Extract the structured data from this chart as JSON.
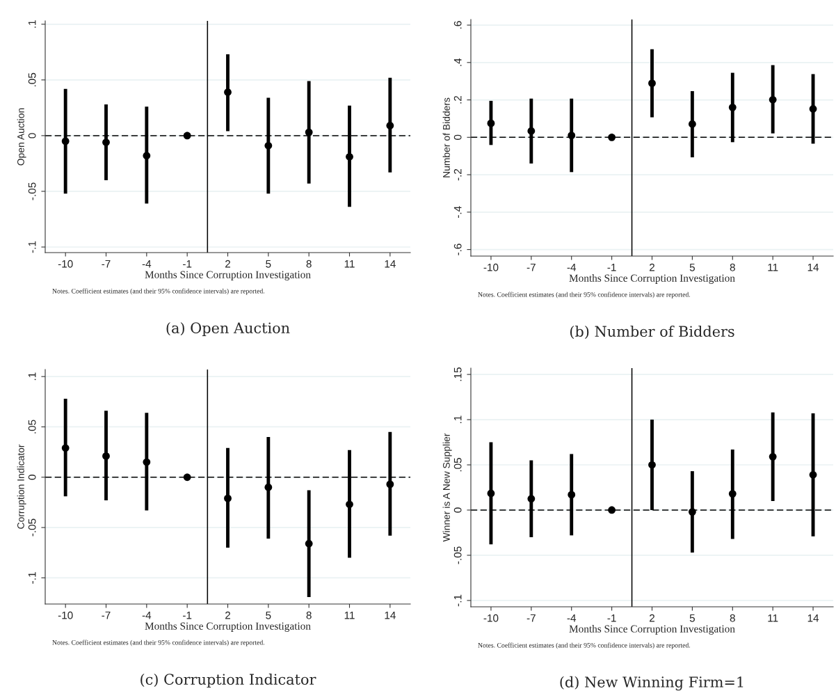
{
  "chart_data": [
    {
      "type": "scatter",
      "title": "(a) Open Auction",
      "xlabel": "Months Since Corruption Investigation",
      "ylabel": "Open Auction",
      "x": [
        -10,
        -7,
        -4,
        -1,
        2,
        5,
        8,
        11,
        14
      ],
      "values": [
        -0.005,
        -0.006,
        -0.018,
        0,
        0.039,
        -0.009,
        0.003,
        -0.019,
        0.009
      ],
      "errors": [
        [
          -0.052,
          0.042
        ],
        [
          -0.04,
          0.028
        ],
        [
          -0.061,
          0.026
        ],
        null,
        [
          0.004,
          0.073
        ],
        [
          -0.052,
          0.034
        ],
        [
          -0.043,
          0.049
        ],
        [
          -0.064,
          0.027
        ],
        [
          -0.033,
          0.052
        ]
      ],
      "color": "#000000",
      "marker": "circle",
      "xlim": [
        -11.5,
        15.5
      ],
      "xticks": [
        -10,
        -7,
        -4,
        -1,
        2,
        5,
        8,
        11,
        14
      ],
      "ylim": [
        -0.105,
        0.103
      ],
      "yticks": [
        {
          "value": -0.1,
          "label": "-.1"
        },
        {
          "value": -0.05,
          "label": "-.05"
        },
        0,
        {
          "value": 0.05,
          "label": ".05"
        },
        {
          "value": 0.1,
          "label": ".1"
        }
      ],
      "grid": "y",
      "ref_lines": [
        {
          "axis": "y",
          "value": 0,
          "line_style": "dashed"
        },
        {
          "axis": "x",
          "value": 0.5,
          "line_style": "solid"
        }
      ],
      "annotations": [
        "Notes. Coefficient estimates (and their 95% confidence intervals) are reported."
      ]
    },
    {
      "type": "scatter",
      "title": "(b) Number of Bidders",
      "xlabel": "Months Since Corruption Investigation",
      "ylabel": "Number of Bidders",
      "x": [
        -10,
        -7,
        -4,
        -1,
        2,
        5,
        8,
        11,
        14
      ],
      "values": [
        0.075,
        0.034,
        0.01,
        0,
        0.289,
        0.071,
        0.16,
        0.201,
        0.152
      ],
      "errors": [
        [
          -0.041,
          0.195
        ],
        [
          -0.14,
          0.207
        ],
        [
          -0.186,
          0.207
        ],
        null,
        [
          0.107,
          0.471
        ],
        [
          -0.107,
          0.247
        ],
        [
          -0.026,
          0.345
        ],
        [
          0.021,
          0.386
        ],
        [
          -0.034,
          0.338
        ]
      ],
      "color": "#000000",
      "marker": "circle",
      "xlim": [
        -11.5,
        15.5
      ],
      "xticks": [
        -10,
        -7,
        -4,
        -1,
        2,
        5,
        8,
        11,
        14
      ],
      "ylim": [
        -0.635,
        0.63
      ],
      "yticks": [
        {
          "value": -0.6,
          "label": "-.6"
        },
        {
          "value": -0.4,
          "label": "-.4"
        },
        {
          "value": -0.2,
          "label": "-.2"
        },
        0,
        {
          "value": 0.2,
          "label": ".2"
        },
        {
          "value": 0.4,
          "label": ".4"
        },
        {
          "value": 0.6,
          "label": ".6"
        }
      ],
      "grid": "y",
      "ref_lines": [
        {
          "axis": "y",
          "value": 0,
          "line_style": "dashed"
        },
        {
          "axis": "x",
          "value": 0.5,
          "line_style": "solid"
        }
      ],
      "annotations": [
        "Notes. Coefficient estimates (and their 95% confidence intervals) are reported."
      ]
    },
    {
      "type": "scatter",
      "title": "(c) Corruption Indicator",
      "xlabel": "Months Since Corruption Investigation",
      "ylabel": "Corruption Indicator",
      "x": [
        -10,
        -7,
        -4,
        -1,
        2,
        5,
        8,
        11,
        14
      ],
      "values": [
        0.029,
        0.021,
        0.015,
        0,
        -0.021,
        -0.01,
        -0.066,
        -0.027,
        -0.007
      ],
      "errors": [
        [
          -0.019,
          0.078
        ],
        [
          -0.023,
          0.066
        ],
        [
          -0.033,
          0.064
        ],
        null,
        [
          -0.07,
          0.029
        ],
        [
          -0.061,
          0.04
        ],
        [
          -0.119,
          -0.013
        ],
        [
          -0.08,
          0.027
        ],
        [
          -0.058,
          0.045
        ]
      ],
      "color": "#000000",
      "marker": "circle",
      "xlim": [
        -11.5,
        15.5
      ],
      "xticks": [
        -10,
        -7,
        -4,
        -1,
        2,
        5,
        8,
        11,
        14
      ],
      "ylim": [
        -0.126,
        0.107
      ],
      "yticks": [
        {
          "value": -0.1,
          "label": "-.1"
        },
        {
          "value": -0.05,
          "label": "-.05"
        },
        0,
        {
          "value": 0.05,
          "label": ".05"
        },
        {
          "value": 0.1,
          "label": ".1"
        }
      ],
      "grid": "y",
      "ref_lines": [
        {
          "axis": "y",
          "value": 0,
          "line_style": "dashed"
        },
        {
          "axis": "x",
          "value": 0.5,
          "line_style": "solid"
        }
      ],
      "annotations": [
        "Notes. Coefficient estimates (and their 95% confidence intervals) are reported."
      ]
    },
    {
      "type": "scatter",
      "title": "(d) New Winning Firm=1",
      "xlabel": "Months Since Corruption Investigation",
      "ylabel": "Winner is A New Supplier",
      "x": [
        -10,
        -7,
        -4,
        -1,
        2,
        5,
        8,
        11,
        14
      ],
      "values": [
        0.0185,
        0.0125,
        0.017,
        0,
        0.05,
        -0.002,
        0.018,
        0.059,
        0.039
      ],
      "errors": [
        [
          -0.038,
          0.075
        ],
        [
          -0.03,
          0.055
        ],
        [
          -0.028,
          0.062
        ],
        null,
        [
          0.0,
          0.1
        ],
        [
          -0.047,
          0.043
        ],
        [
          -0.032,
          0.067
        ],
        [
          0.01,
          0.108
        ],
        [
          -0.029,
          0.107
        ]
      ],
      "color": "#000000",
      "marker": "circle",
      "xlim": [
        -11.5,
        15.5
      ],
      "xticks": [
        -10,
        -7,
        -4,
        -1,
        2,
        5,
        8,
        11,
        14
      ],
      "ylim": [
        -0.107,
        0.157
      ],
      "yticks": [
        {
          "value": -0.1,
          "label": "-.1"
        },
        {
          "value": -0.05,
          "label": "-.05"
        },
        0,
        {
          "value": 0.05,
          "label": ".05"
        },
        {
          "value": 0.1,
          "label": ".1"
        },
        {
          "value": 0.15,
          "label": ".15"
        }
      ],
      "grid": "y",
      "ref_lines": [
        {
          "axis": "y",
          "value": 0,
          "line_style": "dashed"
        },
        {
          "axis": "x",
          "value": 0.5,
          "line_style": "solid"
        }
      ],
      "annotations": [
        "Notes. Coefficient estimates (and their 95% confidence intervals) are reported."
      ]
    }
  ]
}
